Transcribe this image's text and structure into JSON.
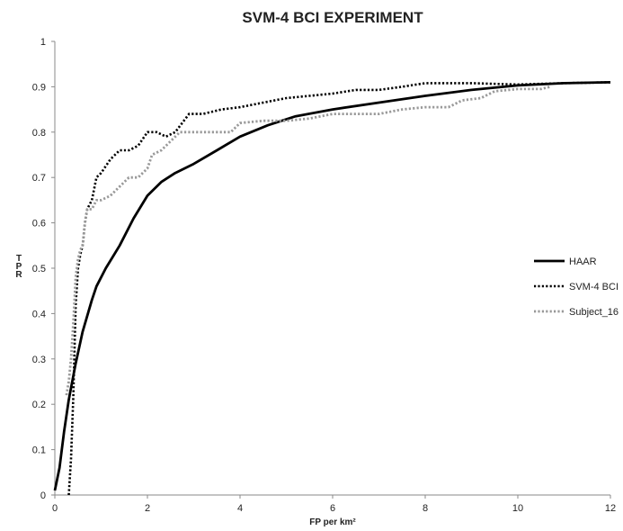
{
  "chart_data": {
    "type": "line",
    "title": "SVM-4 BCI EXPERIMENT",
    "xlabel": "FP per km²",
    "ylabel": "TPR",
    "xlim": [
      0,
      12
    ],
    "ylim": [
      0,
      1
    ],
    "xticks": [
      0,
      2,
      4,
      6,
      8,
      10,
      12
    ],
    "yticks": [
      0,
      0.1,
      0.2,
      0.3,
      0.4,
      0.5,
      0.6,
      0.7,
      0.8,
      0.9,
      1
    ],
    "grid": false,
    "legend": "right",
    "series": [
      {
        "name": "HAAR",
        "style": "solid",
        "color": "#000000",
        "x": [
          0,
          0.1,
          0.2,
          0.3,
          0.45,
          0.6,
          0.8,
          0.9,
          1.1,
          1.4,
          1.7,
          2.0,
          2.3,
          2.6,
          3.0,
          3.5,
          4.0,
          4.6,
          5.2,
          6.0,
          7.0,
          8.0,
          9.0,
          10.0,
          11.0,
          12.0
        ],
        "y": [
          0.01,
          0.06,
          0.14,
          0.21,
          0.29,
          0.36,
          0.43,
          0.46,
          0.5,
          0.55,
          0.61,
          0.66,
          0.69,
          0.71,
          0.73,
          0.76,
          0.79,
          0.815,
          0.835,
          0.85,
          0.865,
          0.88,
          0.893,
          0.903,
          0.908,
          0.91
        ]
      },
      {
        "name": "SVM-4 BCI",
        "style": "dotted",
        "color": "#000000",
        "x": [
          0.3,
          0.35,
          0.4,
          0.45,
          0.5,
          0.55,
          0.6,
          0.65,
          0.7,
          0.75,
          0.8,
          0.9,
          1.0,
          1.2,
          1.4,
          1.6,
          1.8,
          2.0,
          2.2,
          2.4,
          2.6,
          2.9,
          3.2,
          3.6,
          4.0,
          4.5,
          5.0,
          5.5,
          6.0,
          6.5,
          7.0,
          7.5,
          8.0,
          9.0,
          10.0,
          11.0,
          12.0
        ],
        "y": [
          0.0,
          0.08,
          0.22,
          0.42,
          0.5,
          0.53,
          0.55,
          0.6,
          0.63,
          0.64,
          0.65,
          0.7,
          0.71,
          0.74,
          0.76,
          0.76,
          0.77,
          0.8,
          0.8,
          0.79,
          0.8,
          0.84,
          0.84,
          0.85,
          0.855,
          0.865,
          0.875,
          0.88,
          0.885,
          0.893,
          0.893,
          0.9,
          0.908,
          0.908,
          0.905,
          0.908,
          0.91
        ]
      },
      {
        "name": "Subject_16",
        "style": "dotted",
        "color": "#999999",
        "x": [
          0.25,
          0.3,
          0.35,
          0.4,
          0.45,
          0.5,
          0.55,
          0.6,
          0.65,
          0.7,
          0.8,
          0.9,
          1.0,
          1.2,
          1.4,
          1.6,
          1.8,
          2.0,
          2.1,
          2.3,
          2.5,
          2.7,
          3.0,
          3.5,
          3.8,
          4.0,
          4.5,
          5.0,
          5.5,
          6.0,
          7.0,
          7.5,
          8.0,
          8.5,
          8.8,
          9.2,
          9.5,
          10.0,
          10.5,
          10.7
        ],
        "y": [
          0.22,
          0.25,
          0.3,
          0.38,
          0.48,
          0.52,
          0.54,
          0.55,
          0.6,
          0.63,
          0.63,
          0.65,
          0.65,
          0.66,
          0.68,
          0.7,
          0.7,
          0.72,
          0.75,
          0.76,
          0.78,
          0.8,
          0.8,
          0.8,
          0.8,
          0.82,
          0.825,
          0.825,
          0.83,
          0.84,
          0.84,
          0.85,
          0.855,
          0.855,
          0.87,
          0.875,
          0.89,
          0.895,
          0.895,
          0.9
        ]
      }
    ]
  }
}
